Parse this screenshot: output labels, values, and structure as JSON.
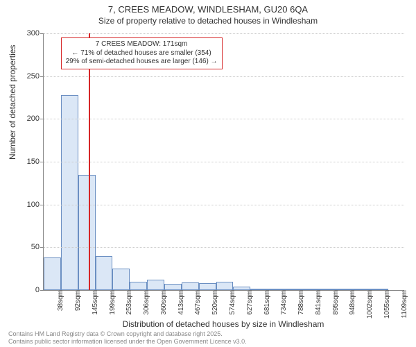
{
  "title": {
    "main": "7, CREES MEADOW, WINDLESHAM, GU20 6QA",
    "sub": "Size of property relative to detached houses in Windlesham"
  },
  "axes": {
    "y_label": "Number of detached properties",
    "x_label": "Distribution of detached houses by size in Windlesham"
  },
  "chart": {
    "type": "histogram",
    "background_color": "#ffffff",
    "bar_fill": "#dbe7f6",
    "bar_border": "#6b8fc2",
    "grid_color": "#cccccc",
    "axis_color": "#888888",
    "marker_color": "#d62728",
    "ylim": [
      0,
      300
    ],
    "ytick_step": 50,
    "x_tick_labels": [
      "38sqm",
      "92sqm",
      "145sqm",
      "199sqm",
      "253sqm",
      "306sqm",
      "360sqm",
      "413sqm",
      "467sqm",
      "520sqm",
      "574sqm",
      "627sqm",
      "681sqm",
      "734sqm",
      "788sqm",
      "841sqm",
      "895sqm",
      "948sqm",
      "1002sqm",
      "1055sqm",
      "1109sqm"
    ],
    "bars": [
      38,
      228,
      135,
      40,
      25,
      10,
      12,
      7,
      9,
      8,
      10,
      4,
      2,
      2,
      1,
      2,
      1,
      2,
      1,
      1,
      0
    ],
    "marker_value_sqm": 171,
    "x_min_sqm": 38,
    "x_max_sqm": 1109
  },
  "annotation": {
    "line1": "7 CREES MEADOW: 171sqm",
    "line2": "← 71% of detached houses are smaller (354)",
    "line3": "29% of semi-detached houses are larger (146) →"
  },
  "footer": {
    "line1": "Contains HM Land Registry data © Crown copyright and database right 2025.",
    "line2": "Contains public sector information licensed under the Open Government Licence v3.0."
  },
  "typography": {
    "title_fontsize": 13,
    "subtitle_fontsize": 12,
    "axis_label_fontsize": 12,
    "tick_fontsize": 11,
    "x_tick_fontsize": 10,
    "annotation_fontsize": 10,
    "footer_fontsize": 9
  }
}
